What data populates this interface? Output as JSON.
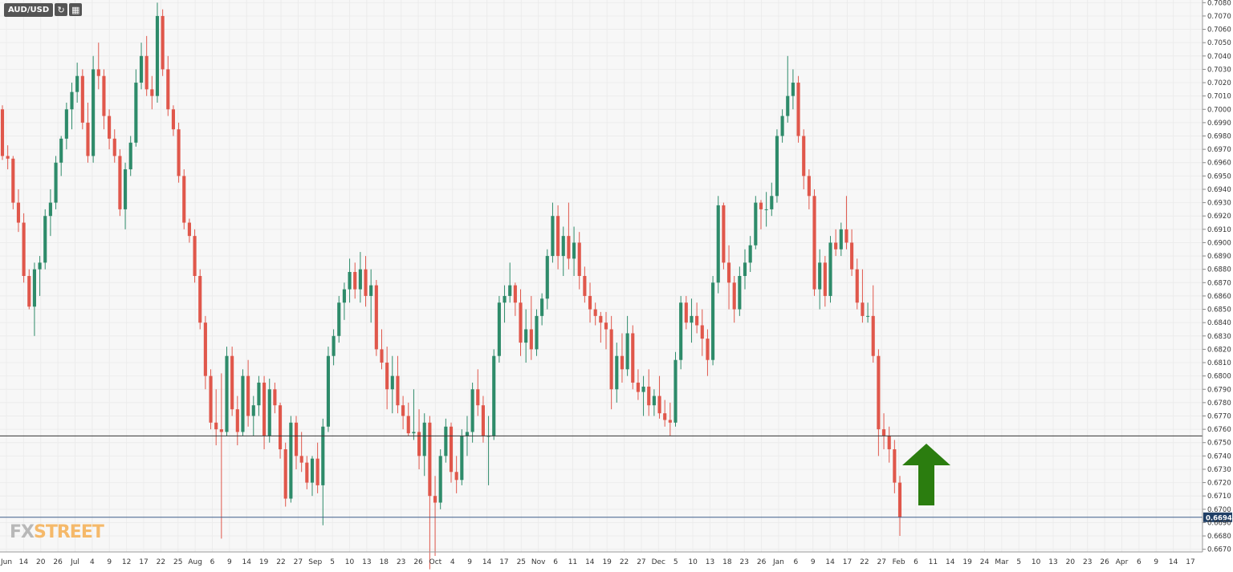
{
  "toolbar": {
    "symbol": "AUD/USD",
    "refresh_icon": "refresh-icon",
    "calendar_icon": "calendar-icon"
  },
  "logo": {
    "part1": "FX",
    "part2": "STREET"
  },
  "colors": {
    "up": "#2e8b6a",
    "down": "#e0574b",
    "grid": "#ececec",
    "plot_bg": "#f7f7f7",
    "hline": "#333333",
    "price_line": "#3f5f8a",
    "arrow": "#2b7d0f"
  },
  "chart_data": {
    "type": "candlestick",
    "title": "",
    "xlabel": "",
    "ylabel": "",
    "ylim": [
      0.6668,
      0.7082
    ],
    "y_ticks": [
      "0.7080",
      "0.7070",
      "0.7060",
      "0.7050",
      "0.7040",
      "0.7030",
      "0.7020",
      "0.7010",
      "0.7000",
      "0.6990",
      "0.6980",
      "0.6970",
      "0.6960",
      "0.6950",
      "0.6940",
      "0.6930",
      "0.6920",
      "0.6910",
      "0.6900",
      "0.6890",
      "0.6880",
      "0.6870",
      "0.6860",
      "0.6850",
      "0.6840",
      "0.6830",
      "0.6820",
      "0.6810",
      "0.6800",
      "0.6790",
      "0.6780",
      "0.6770",
      "0.6760",
      "0.6750",
      "0.6740",
      "0.6730",
      "0.6720",
      "0.6710",
      "0.6700",
      "0.6690",
      "0.6680",
      "0.6670"
    ],
    "x_ticks": [
      "Jun",
      "14",
      "20",
      "26",
      "Jul",
      "4",
      "9",
      "12",
      "17",
      "22",
      "25",
      "Aug",
      "6",
      "9",
      "14",
      "19",
      "22",
      "27",
      "Sep",
      "5",
      "10",
      "13",
      "18",
      "23",
      "26",
      "Oct",
      "4",
      "9",
      "14",
      "17",
      "25",
      "Nov",
      "6",
      "11",
      "14",
      "19",
      "22",
      "27",
      "Dec",
      "5",
      "10",
      "13",
      "18",
      "23",
      "26",
      "Jan",
      "6",
      "9",
      "14",
      "17",
      "22",
      "27",
      "Feb",
      "6",
      "11",
      "14",
      "19",
      "24",
      "Mar",
      "5",
      "10",
      "13",
      "20",
      "23",
      "26",
      "Apr",
      "6",
      "9",
      "14",
      "17"
    ],
    "horizontal_level": 0.6755,
    "last_price": 0.6694,
    "last_price_label": "0.6694",
    "annotation": "green up arrow",
    "candles": [
      [
        0.7,
        0.7003,
        0.6962,
        0.6965
      ],
      [
        0.6965,
        0.6973,
        0.6955,
        0.6963
      ],
      [
        0.6963,
        0.6965,
        0.6925,
        0.693
      ],
      [
        0.693,
        0.694,
        0.6908,
        0.6915
      ],
      [
        0.6915,
        0.6922,
        0.687,
        0.6875
      ],
      [
        0.6875,
        0.688,
        0.685,
        0.6852
      ],
      [
        0.6852,
        0.6885,
        0.683,
        0.688
      ],
      [
        0.688,
        0.689,
        0.686,
        0.6885
      ],
      [
        0.6885,
        0.6925,
        0.688,
        0.692
      ],
      [
        0.692,
        0.694,
        0.6905,
        0.693
      ],
      [
        0.693,
        0.6965,
        0.6925,
        0.696
      ],
      [
        0.696,
        0.698,
        0.695,
        0.6978
      ],
      [
        0.6978,
        0.7005,
        0.697,
        0.7
      ],
      [
        0.7,
        0.702,
        0.6985,
        0.7013
      ],
      [
        0.7013,
        0.7035,
        0.7005,
        0.7025
      ],
      [
        0.7025,
        0.703,
        0.6985,
        0.699
      ],
      [
        0.699,
        0.7005,
        0.696,
        0.6965
      ],
      [
        0.6965,
        0.704,
        0.696,
        0.703
      ],
      [
        0.703,
        0.705,
        0.7015,
        0.7025
      ],
      [
        0.7025,
        0.703,
        0.6985,
        0.6995
      ],
      [
        0.6995,
        0.7,
        0.697,
        0.6978
      ],
      [
        0.6978,
        0.6985,
        0.696,
        0.6965
      ],
      [
        0.6965,
        0.697,
        0.692,
        0.6925
      ],
      [
        0.6925,
        0.696,
        0.691,
        0.6955
      ],
      [
        0.6955,
        0.698,
        0.695,
        0.6975
      ],
      [
        0.6975,
        0.703,
        0.6972,
        0.702
      ],
      [
        0.702,
        0.705,
        0.7015,
        0.704
      ],
      [
        0.704,
        0.7055,
        0.701,
        0.7015
      ],
      [
        0.7015,
        0.7025,
        0.7,
        0.701
      ],
      [
        0.701,
        0.708,
        0.7005,
        0.707
      ],
      [
        0.707,
        0.7075,
        0.7025,
        0.703
      ],
      [
        0.703,
        0.704,
        0.6995,
        0.7
      ],
      [
        0.7,
        0.7003,
        0.698,
        0.6985
      ],
      [
        0.6985,
        0.699,
        0.6945,
        0.695
      ],
      [
        0.695,
        0.6955,
        0.691,
        0.6915
      ],
      [
        0.6915,
        0.6918,
        0.69,
        0.6905
      ],
      [
        0.6905,
        0.691,
        0.687,
        0.6875
      ],
      [
        0.6875,
        0.688,
        0.6835,
        0.684
      ],
      [
        0.684,
        0.6845,
        0.679,
        0.68
      ],
      [
        0.68,
        0.6805,
        0.676,
        0.6765
      ],
      [
        0.6765,
        0.679,
        0.6748,
        0.676
      ],
      [
        0.676,
        0.6802,
        0.6678,
        0.6758
      ],
      [
        0.6758,
        0.6822,
        0.6755,
        0.6815
      ],
      [
        0.6815,
        0.6822,
        0.677,
        0.6775
      ],
      [
        0.6775,
        0.6785,
        0.6748,
        0.6758
      ],
      [
        0.6758,
        0.6805,
        0.6755,
        0.68
      ],
      [
        0.68,
        0.6812,
        0.6762,
        0.677
      ],
      [
        0.677,
        0.6785,
        0.6755,
        0.6778
      ],
      [
        0.6778,
        0.68,
        0.677,
        0.6795
      ],
      [
        0.6795,
        0.68,
        0.6745,
        0.6755
      ],
      [
        0.6755,
        0.6798,
        0.675,
        0.679
      ],
      [
        0.679,
        0.6795,
        0.6772,
        0.6778
      ],
      [
        0.6778,
        0.678,
        0.6738,
        0.6745
      ],
      [
        0.6745,
        0.675,
        0.6702,
        0.6708
      ],
      [
        0.6708,
        0.677,
        0.6705,
        0.6765
      ],
      [
        0.6765,
        0.677,
        0.673,
        0.674
      ],
      [
        0.674,
        0.6758,
        0.6728,
        0.6735
      ],
      [
        0.6735,
        0.674,
        0.6715,
        0.672
      ],
      [
        0.672,
        0.674,
        0.671,
        0.6738
      ],
      [
        0.6738,
        0.675,
        0.6712,
        0.6718
      ],
      [
        0.6718,
        0.6768,
        0.6688,
        0.6762
      ],
      [
        0.6762,
        0.6822,
        0.6758,
        0.6815
      ],
      [
        0.6815,
        0.6835,
        0.6808,
        0.683
      ],
      [
        0.683,
        0.686,
        0.6825,
        0.6855
      ],
      [
        0.6855,
        0.687,
        0.6842,
        0.6865
      ],
      [
        0.6865,
        0.6888,
        0.6855,
        0.6878
      ],
      [
        0.6878,
        0.6885,
        0.6858,
        0.6865
      ],
      [
        0.6865,
        0.6893,
        0.6855,
        0.688
      ],
      [
        0.688,
        0.689,
        0.6852,
        0.686
      ],
      [
        0.686,
        0.688,
        0.684,
        0.6868
      ],
      [
        0.6868,
        0.6872,
        0.6815,
        0.682
      ],
      [
        0.682,
        0.6835,
        0.6805,
        0.681
      ],
      [
        0.681,
        0.6822,
        0.6775,
        0.679
      ],
      [
        0.679,
        0.6815,
        0.6772,
        0.68
      ],
      [
        0.68,
        0.6815,
        0.6772,
        0.6778
      ],
      [
        0.6778,
        0.6785,
        0.676,
        0.677
      ],
      [
        0.677,
        0.678,
        0.6755,
        0.6757
      ],
      [
        0.6757,
        0.679,
        0.6752,
        0.6758
      ],
      [
        0.6758,
        0.6775,
        0.673,
        0.674
      ],
      [
        0.674,
        0.6772,
        0.6725,
        0.6765
      ],
      [
        0.6765,
        0.677,
        0.6655,
        0.671
      ],
      [
        0.671,
        0.6725,
        0.6665,
        0.6705
      ],
      [
        0.6705,
        0.6745,
        0.67,
        0.674
      ],
      [
        0.674,
        0.6768,
        0.6735,
        0.6762
      ],
      [
        0.6762,
        0.6765,
        0.672,
        0.6728
      ],
      [
        0.6728,
        0.674,
        0.6712,
        0.6722
      ],
      [
        0.6722,
        0.676,
        0.6718,
        0.6755
      ],
      [
        0.6755,
        0.677,
        0.674,
        0.6758
      ],
      [
        0.6758,
        0.6795,
        0.675,
        0.679
      ],
      [
        0.679,
        0.6805,
        0.677,
        0.6778
      ],
      [
        0.6778,
        0.6785,
        0.675,
        0.6755
      ],
      [
        0.6755,
        0.677,
        0.6718,
        0.6755
      ],
      [
        0.6755,
        0.682,
        0.6752,
        0.6815
      ],
      [
        0.6815,
        0.686,
        0.681,
        0.6855
      ],
      [
        0.6855,
        0.6868,
        0.684,
        0.686
      ],
      [
        0.686,
        0.6885,
        0.6855,
        0.6868
      ],
      [
        0.6868,
        0.687,
        0.6845,
        0.6855
      ],
      [
        0.6855,
        0.6865,
        0.6815,
        0.6825
      ],
      [
        0.6825,
        0.685,
        0.681,
        0.6835
      ],
      [
        0.6835,
        0.686,
        0.6812,
        0.682
      ],
      [
        0.682,
        0.685,
        0.6815,
        0.6845
      ],
      [
        0.6845,
        0.6862,
        0.6838,
        0.6858
      ],
      [
        0.6858,
        0.6895,
        0.685,
        0.689
      ],
      [
        0.689,
        0.693,
        0.6885,
        0.692
      ],
      [
        0.692,
        0.6928,
        0.688,
        0.689
      ],
      [
        0.689,
        0.6912,
        0.6875,
        0.6905
      ],
      [
        0.6905,
        0.693,
        0.688,
        0.6888
      ],
      [
        0.6888,
        0.6912,
        0.6875,
        0.69
      ],
      [
        0.69,
        0.6908,
        0.6865,
        0.6875
      ],
      [
        0.6875,
        0.6882,
        0.6855,
        0.686
      ],
      [
        0.686,
        0.687,
        0.684,
        0.685
      ],
      [
        0.685,
        0.6855,
        0.6838,
        0.6845
      ],
      [
        0.6845,
        0.6848,
        0.6825,
        0.684
      ],
      [
        0.684,
        0.6848,
        0.682,
        0.6835
      ],
      [
        0.6835,
        0.6845,
        0.6775,
        0.679
      ],
      [
        0.679,
        0.6825,
        0.678,
        0.6815
      ],
      [
        0.6815,
        0.6832,
        0.6795,
        0.6805
      ],
      [
        0.6805,
        0.6845,
        0.68,
        0.6832
      ],
      [
        0.6832,
        0.6838,
        0.679,
        0.6795
      ],
      [
        0.6795,
        0.6805,
        0.6782,
        0.6788
      ],
      [
        0.6788,
        0.68,
        0.677,
        0.6792
      ],
      [
        0.6792,
        0.6805,
        0.677,
        0.6778
      ],
      [
        0.6778,
        0.679,
        0.677,
        0.6785
      ],
      [
        0.6785,
        0.68,
        0.6768,
        0.6772
      ],
      [
        0.6772,
        0.6782,
        0.6762,
        0.6767
      ],
      [
        0.6767,
        0.678,
        0.6755,
        0.6765
      ],
      [
        0.6765,
        0.6818,
        0.6762,
        0.6812
      ],
      [
        0.6812,
        0.686,
        0.6805,
        0.6855
      ],
      [
        0.6855,
        0.686,
        0.6835,
        0.684
      ],
      [
        0.684,
        0.6858,
        0.6825,
        0.6845
      ],
      [
        0.6845,
        0.6855,
        0.6832,
        0.6838
      ],
      [
        0.6838,
        0.685,
        0.6815,
        0.6828
      ],
      [
        0.6828,
        0.6835,
        0.68,
        0.6812
      ],
      [
        0.6812,
        0.6875,
        0.6808,
        0.687
      ],
      [
        0.687,
        0.6935,
        0.6862,
        0.6928
      ],
      [
        0.6928,
        0.693,
        0.688,
        0.6885
      ],
      [
        0.6885,
        0.6898,
        0.685,
        0.687
      ],
      [
        0.687,
        0.6875,
        0.684,
        0.685
      ],
      [
        0.685,
        0.6882,
        0.6845,
        0.6875
      ],
      [
        0.6875,
        0.6895,
        0.6865,
        0.6885
      ],
      [
        0.6885,
        0.6905,
        0.6878,
        0.6898
      ],
      [
        0.6898,
        0.6935,
        0.6895,
        0.693
      ],
      [
        0.693,
        0.6932,
        0.691,
        0.6925
      ],
      [
        0.6925,
        0.6938,
        0.6912,
        0.6925
      ],
      [
        0.6925,
        0.6945,
        0.692,
        0.6935
      ],
      [
        0.6935,
        0.6985,
        0.693,
        0.698
      ],
      [
        0.698,
        0.7,
        0.6975,
        0.6995
      ],
      [
        0.6995,
        0.704,
        0.699,
        0.701
      ],
      [
        0.701,
        0.703,
        0.7,
        0.702
      ],
      [
        0.702,
        0.7025,
        0.6975,
        0.698
      ],
      [
        0.698,
        0.6985,
        0.694,
        0.695
      ],
      [
        0.695,
        0.6955,
        0.6925,
        0.6935
      ],
      [
        0.6935,
        0.694,
        0.686,
        0.6865
      ],
      [
        0.6865,
        0.6895,
        0.685,
        0.6885
      ],
      [
        0.6885,
        0.689,
        0.6852,
        0.686
      ],
      [
        0.686,
        0.6905,
        0.6855,
        0.69
      ],
      [
        0.69,
        0.691,
        0.689,
        0.6895
      ],
      [
        0.6895,
        0.6915,
        0.689,
        0.691
      ],
      [
        0.691,
        0.6935,
        0.6895,
        0.69
      ],
      [
        0.69,
        0.691,
        0.6875,
        0.688
      ],
      [
        0.688,
        0.6888,
        0.685,
        0.6855
      ],
      [
        0.6855,
        0.688,
        0.684,
        0.6845
      ],
      [
        0.6845,
        0.6855,
        0.684,
        0.6845
      ],
      [
        0.6845,
        0.6868,
        0.681,
        0.6815
      ],
      [
        0.6815,
        0.682,
        0.674,
        0.676
      ],
      [
        0.676,
        0.6772,
        0.6745,
        0.6755
      ],
      [
        0.6755,
        0.6762,
        0.6735,
        0.6745
      ],
      [
        0.6745,
        0.6752,
        0.6712,
        0.672
      ],
      [
        0.672,
        0.6725,
        0.668,
        0.6694
      ]
    ]
  }
}
